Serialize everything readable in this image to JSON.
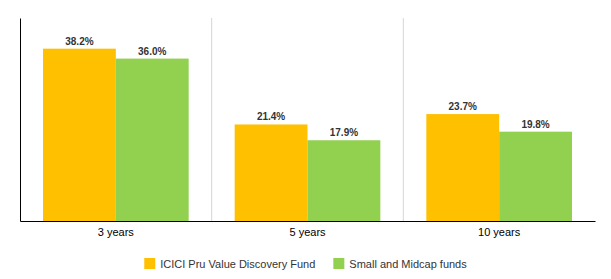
{
  "chart_data": {
    "type": "bar",
    "categories": [
      "3 years",
      "5 years",
      "10 years"
    ],
    "series": [
      {
        "name": "ICICI Pru Value Discovery Fund",
        "color": "#FFC000",
        "values": [
          38.2,
          21.4,
          23.7
        ],
        "value_labels": [
          "38.2%",
          "21.4%",
          "23.7%"
        ]
      },
      {
        "name": "Small and Midcap funds",
        "color": "#92D050",
        "values": [
          36.0,
          17.9,
          19.8
        ],
        "value_labels": [
          "36.0%",
          "17.9%",
          "19.8%"
        ]
      }
    ],
    "ylim": [
      0,
      45
    ],
    "data_labels": true,
    "tick_labels": "x",
    "legend": "bottom"
  }
}
